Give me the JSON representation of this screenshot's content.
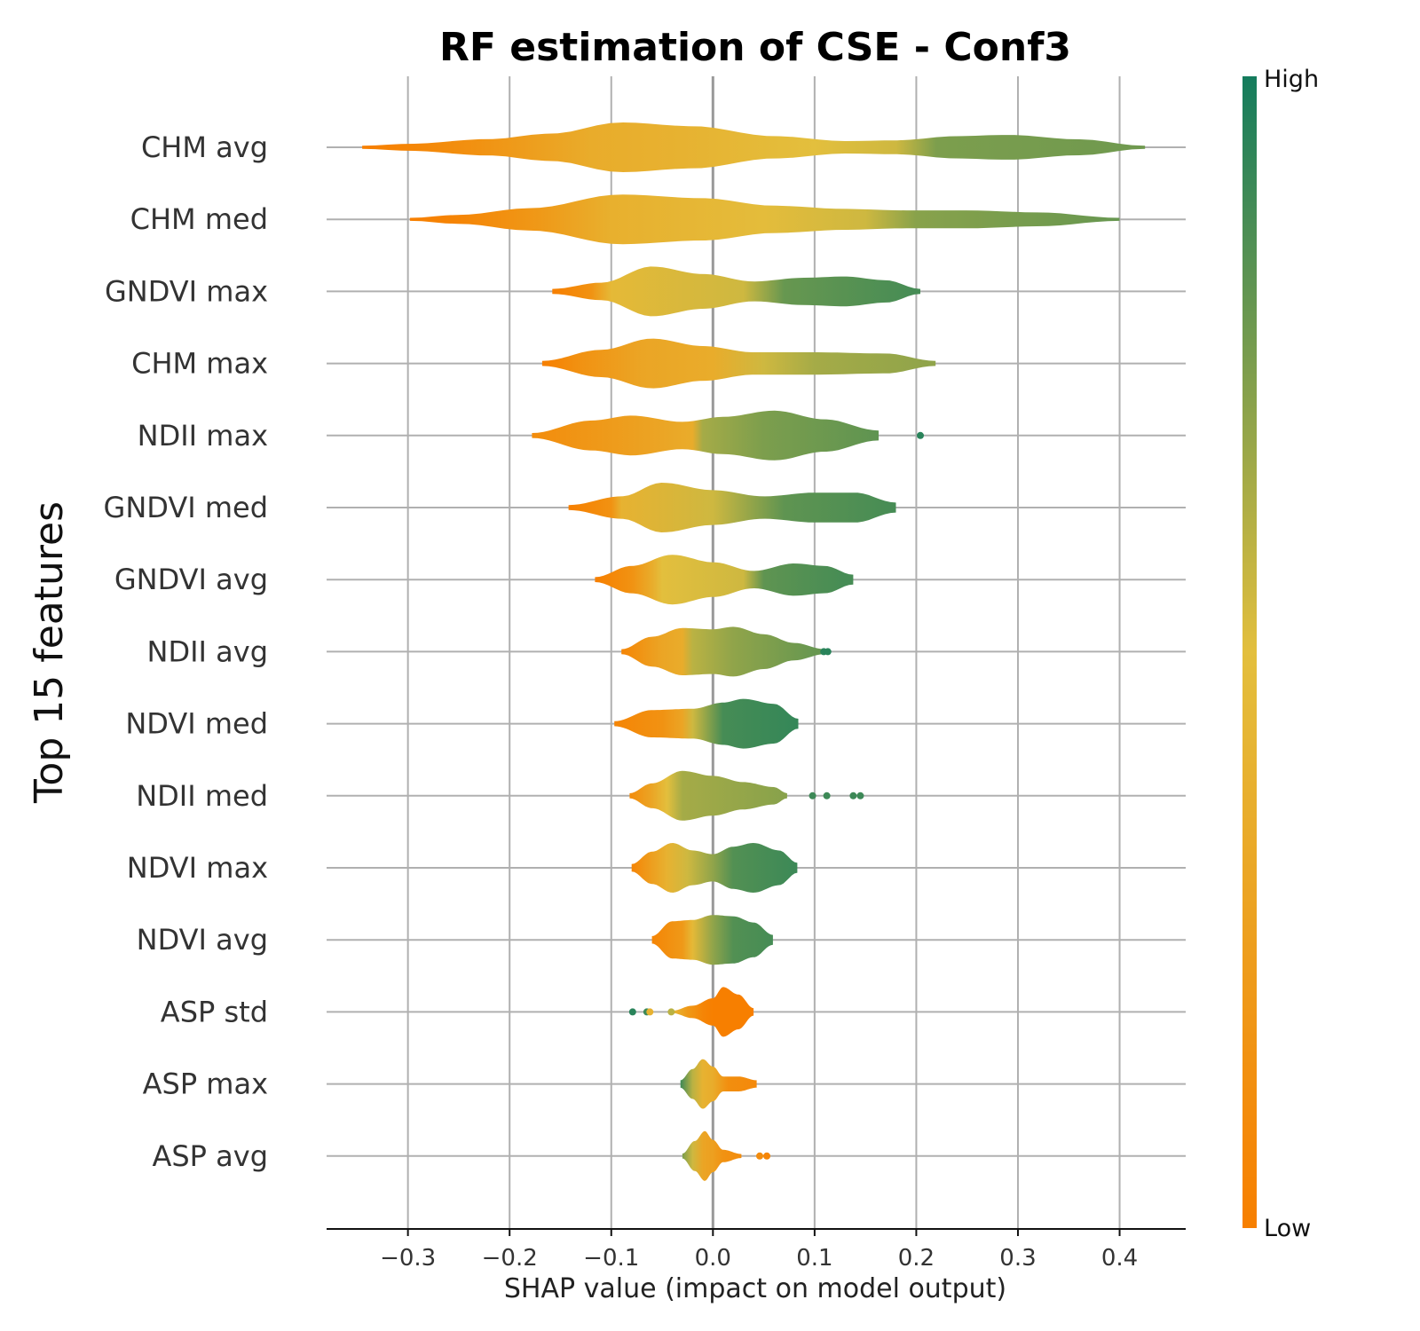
{
  "chart_data": {
    "type": "violin",
    "title": "RF estimation of CSE - Conf3",
    "xlabel": "SHAP value (impact on model output)",
    "ylabel": "Top 15 features",
    "xlim": [
      -0.38,
      0.465
    ],
    "xticks": [
      -0.3,
      -0.2,
      -0.1,
      0.0,
      0.1,
      0.2,
      0.3,
      0.4
    ],
    "xtick_labels": [
      "−0.3",
      "−0.2",
      "−0.1",
      "0.0",
      "0.1",
      "0.2",
      "0.3",
      "0.4"
    ],
    "grid": true,
    "colorbar": {
      "high_label": "High",
      "low_label": "Low",
      "colors": [
        "#f77f00",
        "#e3bf3d",
        "#147c5d"
      ]
    },
    "features": [
      {
        "name": "CHM avg",
        "min": -0.345,
        "max": 0.425,
        "profile": [
          [
            -0.345,
            0.06
          ],
          [
            -0.3,
            0.14
          ],
          [
            -0.22,
            0.33
          ],
          [
            -0.16,
            0.55
          ],
          [
            -0.09,
            1.0
          ],
          [
            -0.02,
            0.85
          ],
          [
            0.06,
            0.45
          ],
          [
            0.13,
            0.25
          ],
          [
            0.18,
            0.28
          ],
          [
            0.24,
            0.45
          ],
          [
            0.29,
            0.5
          ],
          [
            0.36,
            0.32
          ],
          [
            0.425,
            0.06
          ]
        ],
        "colors": [
          [
            -0.345,
            0.0
          ],
          [
            -0.3,
            0.05
          ],
          [
            -0.23,
            0.15
          ],
          [
            -0.12,
            0.35
          ],
          [
            -0.03,
            0.4
          ],
          [
            0.1,
            0.5
          ],
          [
            0.18,
            0.55
          ],
          [
            0.22,
            0.75
          ],
          [
            0.42,
            0.78
          ]
        ]
      },
      {
        "name": "CHM med",
        "min": -0.298,
        "max": 0.4,
        "profile": [
          [
            -0.298,
            0.06
          ],
          [
            -0.25,
            0.18
          ],
          [
            -0.18,
            0.45
          ],
          [
            -0.09,
            1.0
          ],
          [
            -0.01,
            0.85
          ],
          [
            0.06,
            0.55
          ],
          [
            0.13,
            0.42
          ],
          [
            0.19,
            0.36
          ],
          [
            0.25,
            0.36
          ],
          [
            0.32,
            0.28
          ],
          [
            0.4,
            0.06
          ]
        ],
        "colors": [
          [
            -0.298,
            0.0
          ],
          [
            -0.25,
            0.05
          ],
          [
            -0.17,
            0.2
          ],
          [
            -0.1,
            0.38
          ],
          [
            0.05,
            0.48
          ],
          [
            0.15,
            0.55
          ],
          [
            0.2,
            0.72
          ],
          [
            0.4,
            0.8
          ]
        ]
      },
      {
        "name": "GNDVI max",
        "min": -0.158,
        "max": 0.204,
        "profile": [
          [
            -0.158,
            0.1
          ],
          [
            -0.11,
            0.35
          ],
          [
            -0.06,
            1.0
          ],
          [
            -0.01,
            0.7
          ],
          [
            0.04,
            0.4
          ],
          [
            0.09,
            0.55
          ],
          [
            0.13,
            0.6
          ],
          [
            0.17,
            0.45
          ],
          [
            0.204,
            0.1
          ]
        ],
        "colors": [
          [
            -0.158,
            0.0
          ],
          [
            -0.12,
            0.15
          ],
          [
            -0.1,
            0.45
          ],
          [
            0.03,
            0.55
          ],
          [
            0.07,
            0.8
          ],
          [
            0.2,
            0.88
          ]
        ]
      },
      {
        "name": "CHM max",
        "min": -0.168,
        "max": 0.219,
        "profile": [
          [
            -0.168,
            0.1
          ],
          [
            -0.11,
            0.55
          ],
          [
            -0.06,
            1.0
          ],
          [
            -0.01,
            0.7
          ],
          [
            0.04,
            0.45
          ],
          [
            0.1,
            0.45
          ],
          [
            0.17,
            0.4
          ],
          [
            0.219,
            0.1
          ]
        ],
        "colors": [
          [
            -0.168,
            0.0
          ],
          [
            -0.13,
            0.15
          ],
          [
            -0.07,
            0.3
          ],
          [
            0.0,
            0.35
          ],
          [
            0.05,
            0.55
          ],
          [
            0.1,
            0.65
          ],
          [
            0.21,
            0.7
          ]
        ]
      },
      {
        "name": "NDII max",
        "min": -0.178,
        "max": 0.163,
        "profile": [
          [
            -0.178,
            0.1
          ],
          [
            -0.12,
            0.6
          ],
          [
            -0.08,
            0.8
          ],
          [
            -0.03,
            0.55
          ],
          [
            0.01,
            0.75
          ],
          [
            0.06,
            1.0
          ],
          [
            0.11,
            0.65
          ],
          [
            0.163,
            0.2
          ]
        ],
        "colors": [
          [
            -0.178,
            0.1
          ],
          [
            -0.05,
            0.3
          ],
          [
            -0.02,
            0.35
          ],
          [
            -0.01,
            0.65
          ],
          [
            0.05,
            0.75
          ],
          [
            0.16,
            0.82
          ]
        ]
      },
      {
        "name": "GNDVI med",
        "min": -0.142,
        "max": 0.18,
        "profile": [
          [
            -0.142,
            0.1
          ],
          [
            -0.09,
            0.45
          ],
          [
            -0.05,
            1.0
          ],
          [
            0.0,
            0.7
          ],
          [
            0.05,
            0.45
          ],
          [
            0.1,
            0.6
          ],
          [
            0.14,
            0.6
          ],
          [
            0.18,
            0.2
          ]
        ],
        "colors": [
          [
            -0.142,
            0.0
          ],
          [
            -0.1,
            0.15
          ],
          [
            -0.09,
            0.4
          ],
          [
            0.0,
            0.55
          ],
          [
            0.07,
            0.82
          ],
          [
            0.18,
            0.88
          ]
        ]
      },
      {
        "name": "GNDVI avg",
        "min": -0.116,
        "max": 0.138,
        "profile": [
          [
            -0.116,
            0.1
          ],
          [
            -0.08,
            0.55
          ],
          [
            -0.04,
            1.0
          ],
          [
            0.0,
            0.7
          ],
          [
            0.04,
            0.35
          ],
          [
            0.08,
            0.65
          ],
          [
            0.11,
            0.55
          ],
          [
            0.138,
            0.2
          ]
        ],
        "colors": [
          [
            -0.116,
            0.0
          ],
          [
            -0.08,
            0.15
          ],
          [
            -0.06,
            0.35
          ],
          [
            -0.05,
            0.5
          ],
          [
            0.03,
            0.55
          ],
          [
            0.05,
            0.82
          ],
          [
            0.13,
            0.88
          ]
        ]
      },
      {
        "name": "NDII avg",
        "min": -0.09,
        "max": 0.11,
        "profile": [
          [
            -0.09,
            0.1
          ],
          [
            -0.06,
            0.6
          ],
          [
            -0.03,
            0.95
          ],
          [
            0.0,
            0.9
          ],
          [
            0.02,
            1.0
          ],
          [
            0.05,
            0.7
          ],
          [
            0.08,
            0.35
          ],
          [
            0.11,
            0.1
          ]
        ],
        "colors": [
          [
            -0.09,
            0.05
          ],
          [
            -0.05,
            0.3
          ],
          [
            -0.03,
            0.35
          ],
          [
            -0.02,
            0.6
          ],
          [
            0.02,
            0.7
          ],
          [
            0.1,
            0.8
          ]
        ]
      },
      {
        "name": "NDVI med",
        "min": -0.097,
        "max": 0.084,
        "profile": [
          [
            -0.097,
            0.1
          ],
          [
            -0.06,
            0.55
          ],
          [
            -0.02,
            0.6
          ],
          [
            0.01,
            0.85
          ],
          [
            0.03,
            1.0
          ],
          [
            0.06,
            0.8
          ],
          [
            0.084,
            0.2
          ]
        ],
        "colors": [
          [
            -0.097,
            0.05
          ],
          [
            -0.05,
            0.15
          ],
          [
            -0.03,
            0.3
          ],
          [
            -0.02,
            0.55
          ],
          [
            0.01,
            0.88
          ],
          [
            0.08,
            0.92
          ]
        ]
      },
      {
        "name": "NDII med",
        "min": -0.082,
        "max": 0.073,
        "profile": [
          [
            -0.082,
            0.1
          ],
          [
            -0.06,
            0.5
          ],
          [
            -0.03,
            1.0
          ],
          [
            0.0,
            0.8
          ],
          [
            0.03,
            0.55
          ],
          [
            0.06,
            0.35
          ],
          [
            0.073,
            0.1
          ]
        ],
        "colors": [
          [
            -0.082,
            0.1
          ],
          [
            -0.06,
            0.3
          ],
          [
            -0.045,
            0.5
          ],
          [
            -0.03,
            0.65
          ],
          [
            0.07,
            0.72
          ]
        ]
      },
      {
        "name": "NDVI max",
        "min": -0.08,
        "max": 0.083,
        "profile": [
          [
            -0.08,
            0.15
          ],
          [
            -0.06,
            0.65
          ],
          [
            -0.04,
            1.0
          ],
          [
            -0.02,
            0.7
          ],
          [
            0.0,
            0.55
          ],
          [
            0.02,
            0.85
          ],
          [
            0.04,
            1.0
          ],
          [
            0.065,
            0.7
          ],
          [
            0.083,
            0.2
          ]
        ],
        "colors": [
          [
            -0.08,
            0.05
          ],
          [
            -0.06,
            0.25
          ],
          [
            -0.045,
            0.4
          ],
          [
            -0.025,
            0.55
          ],
          [
            0.0,
            0.7
          ],
          [
            0.02,
            0.85
          ],
          [
            0.08,
            0.9
          ]
        ]
      },
      {
        "name": "NDVI avg",
        "min": -0.06,
        "max": 0.059,
        "profile": [
          [
            -0.06,
            0.15
          ],
          [
            -0.04,
            0.75
          ],
          [
            -0.02,
            0.8
          ],
          [
            0.0,
            1.0
          ],
          [
            0.02,
            0.95
          ],
          [
            0.04,
            0.7
          ],
          [
            0.059,
            0.2
          ]
        ],
        "colors": [
          [
            -0.06,
            0.05
          ],
          [
            -0.03,
            0.2
          ],
          [
            -0.02,
            0.45
          ],
          [
            0.0,
            0.7
          ],
          [
            0.02,
            0.85
          ],
          [
            0.06,
            0.88
          ]
        ]
      },
      {
        "name": "ASP std",
        "min": -0.04,
        "max": 0.04,
        "profile": [
          [
            -0.04,
            0.05
          ],
          [
            -0.02,
            0.25
          ],
          [
            0.0,
            0.55
          ],
          [
            0.01,
            1.0
          ],
          [
            0.025,
            0.7
          ],
          [
            0.04,
            0.15
          ]
        ],
        "colors": [
          [
            -0.04,
            0.45
          ],
          [
            -0.025,
            0.2
          ],
          [
            -0.01,
            0.05
          ],
          [
            0.0,
            0.0
          ],
          [
            0.04,
            0.0
          ]
        ]
      },
      {
        "name": "ASP max",
        "min": -0.032,
        "max": 0.043,
        "profile": [
          [
            -0.032,
            0.15
          ],
          [
            -0.02,
            0.6
          ],
          [
            -0.01,
            1.0
          ],
          [
            0.0,
            0.7
          ],
          [
            0.01,
            0.3
          ],
          [
            0.025,
            0.3
          ],
          [
            0.043,
            0.15
          ]
        ],
        "colors": [
          [
            -0.032,
            0.9
          ],
          [
            -0.02,
            0.6
          ],
          [
            -0.01,
            0.4
          ],
          [
            0.0,
            0.35
          ],
          [
            0.015,
            0.12
          ],
          [
            0.043,
            0.08
          ]
        ]
      },
      {
        "name": "ASP avg",
        "min": -0.03,
        "max": 0.028,
        "profile": [
          [
            -0.03,
            0.1
          ],
          [
            -0.018,
            0.6
          ],
          [
            -0.008,
            1.0
          ],
          [
            0.0,
            0.65
          ],
          [
            0.01,
            0.25
          ],
          [
            0.028,
            0.08
          ]
        ],
        "colors": [
          [
            -0.03,
            0.75
          ],
          [
            -0.02,
            0.55
          ],
          [
            -0.01,
            0.3
          ],
          [
            0.0,
            0.25
          ],
          [
            0.01,
            0.15
          ],
          [
            0.028,
            0.1
          ]
        ]
      }
    ],
    "outliers": [
      {
        "feature": "NDII max",
        "x": 0.204,
        "color": 0.95
      },
      {
        "feature": "NDII avg",
        "x": 0.109,
        "color": 0.95
      },
      {
        "feature": "NDII avg",
        "x": 0.113,
        "color": 0.95
      },
      {
        "feature": "NDII med",
        "x": 0.098,
        "color": 0.9
      },
      {
        "feature": "NDII med",
        "x": 0.112,
        "color": 0.9
      },
      {
        "feature": "NDII med",
        "x": 0.138,
        "color": 0.9
      },
      {
        "feature": "NDII med",
        "x": 0.145,
        "color": 0.9
      },
      {
        "feature": "ASP std",
        "x": -0.079,
        "color": 0.95
      },
      {
        "feature": "ASP std",
        "x": -0.065,
        "color": 0.9
      },
      {
        "feature": "ASP std",
        "x": -0.062,
        "color": 0.4
      },
      {
        "feature": "ASP std",
        "x": -0.041,
        "color": 0.6
      },
      {
        "feature": "ASP avg",
        "x": 0.046,
        "color": 0.1
      },
      {
        "feature": "ASP avg",
        "x": 0.053,
        "color": 0.05
      }
    ]
  }
}
